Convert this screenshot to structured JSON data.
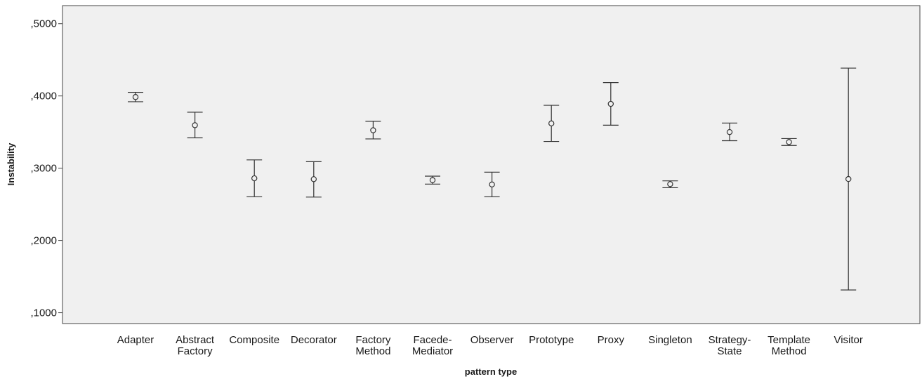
{
  "chart_data": {
    "type": "errorbar",
    "xlabel": "pattern type",
    "ylabel": "Instability",
    "ylim": [
      0.085,
      0.525
    ],
    "yticks": [
      {
        "value": 0.1,
        "label": ",1000"
      },
      {
        "value": 0.2,
        "label": ",2000"
      },
      {
        "value": 0.3,
        "label": ",3000"
      },
      {
        "value": 0.4,
        "label": ",4000"
      },
      {
        "value": 0.5,
        "label": ",5000"
      }
    ],
    "categories": [
      [
        "Adapter"
      ],
      [
        "Abstract",
        "Factory"
      ],
      [
        "Composite"
      ],
      [
        "Decorator"
      ],
      [
        "Factory",
        "Method"
      ],
      [
        "Facede-",
        "Mediator"
      ],
      [
        "Observer"
      ],
      [
        "Prototype"
      ],
      [
        "Proxy"
      ],
      [
        "Singleton"
      ],
      [
        "Strategy-",
        "State"
      ],
      [
        "Template",
        "Method"
      ],
      [
        "Visitor"
      ]
    ],
    "mean": [
      0.3985,
      0.3595,
      0.286,
      0.2848,
      0.3525,
      0.2835,
      0.2775,
      0.362,
      0.389,
      0.278,
      0.35,
      0.3362,
      0.285
    ],
    "upper": [
      0.405,
      0.3775,
      0.3115,
      0.309,
      0.365,
      0.289,
      0.2945,
      0.387,
      0.4185,
      0.2825,
      0.3625,
      0.341,
      0.4385
    ],
    "lower": [
      0.392,
      0.342,
      0.2605,
      0.26,
      0.3405,
      0.278,
      0.2605,
      0.337,
      0.3595,
      0.273,
      0.338,
      0.3315,
      0.1315
    ],
    "grid": false,
    "background": "#f0f0f0",
    "line_color": "#333333"
  }
}
